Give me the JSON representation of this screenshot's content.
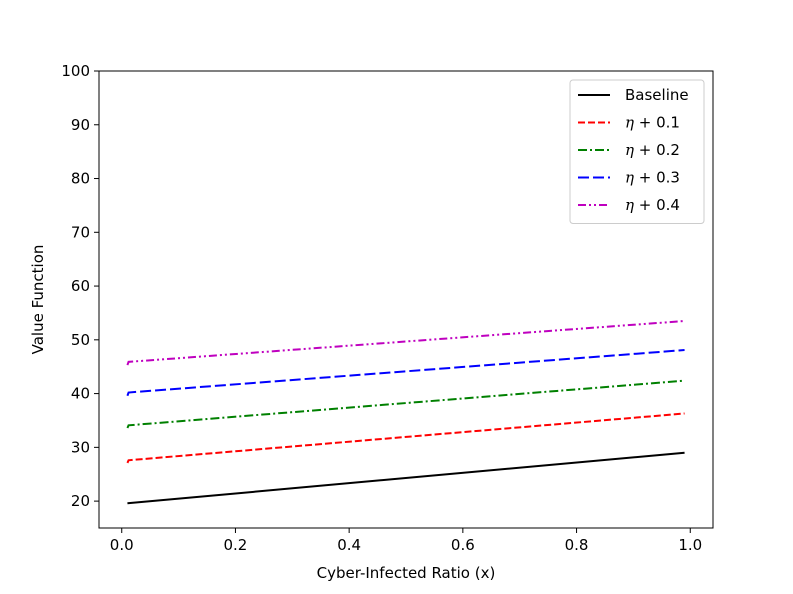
{
  "chart_data": {
    "type": "line",
    "title": "",
    "xlabel": "Cyber-Infected Ratio (x)",
    "ylabel": "Value Function",
    "xlim": [
      -0.04,
      1.04
    ],
    "ylim": [
      15,
      100
    ],
    "xticks": [
      0.0,
      0.2,
      0.4,
      0.6,
      0.8,
      1.0
    ],
    "xtick_labels": [
      "0.0",
      "0.2",
      "0.4",
      "0.6",
      "0.8",
      "1.0"
    ],
    "yticks": [
      20,
      30,
      40,
      50,
      60,
      70,
      80,
      90,
      100
    ],
    "ytick_labels": [
      "20",
      "30",
      "40",
      "50",
      "60",
      "70",
      "80",
      "90",
      "100"
    ],
    "grid": false,
    "legend_position": "top-right",
    "series": [
      {
        "name": "Baseline",
        "color": "#000000",
        "dash": "solid",
        "x": [
          0.01,
          0.99
        ],
        "y": [
          19.6,
          29.0
        ]
      },
      {
        "name": "η + 0.1",
        "color": "#ff0000",
        "dash": "dashed",
        "x": [
          0.01,
          0.012,
          0.99
        ],
        "y": [
          27.1,
          27.6,
          36.3
        ]
      },
      {
        "name": "η + 0.2",
        "color": "#008000",
        "dash": "dashdot",
        "x": [
          0.01,
          0.012,
          0.99
        ],
        "y": [
          33.6,
          34.1,
          42.4
        ]
      },
      {
        "name": "η + 0.3",
        "color": "#0000ff",
        "dash": "longdash",
        "x": [
          0.01,
          0.012,
          0.99
        ],
        "y": [
          39.6,
          40.2,
          48.1
        ]
      },
      {
        "name": "η + 0.4",
        "color": "#bf00bf",
        "dash": "dashdotdot",
        "x": [
          0.01,
          0.012,
          0.99
        ],
        "y": [
          45.3,
          45.9,
          53.5
        ]
      }
    ]
  }
}
